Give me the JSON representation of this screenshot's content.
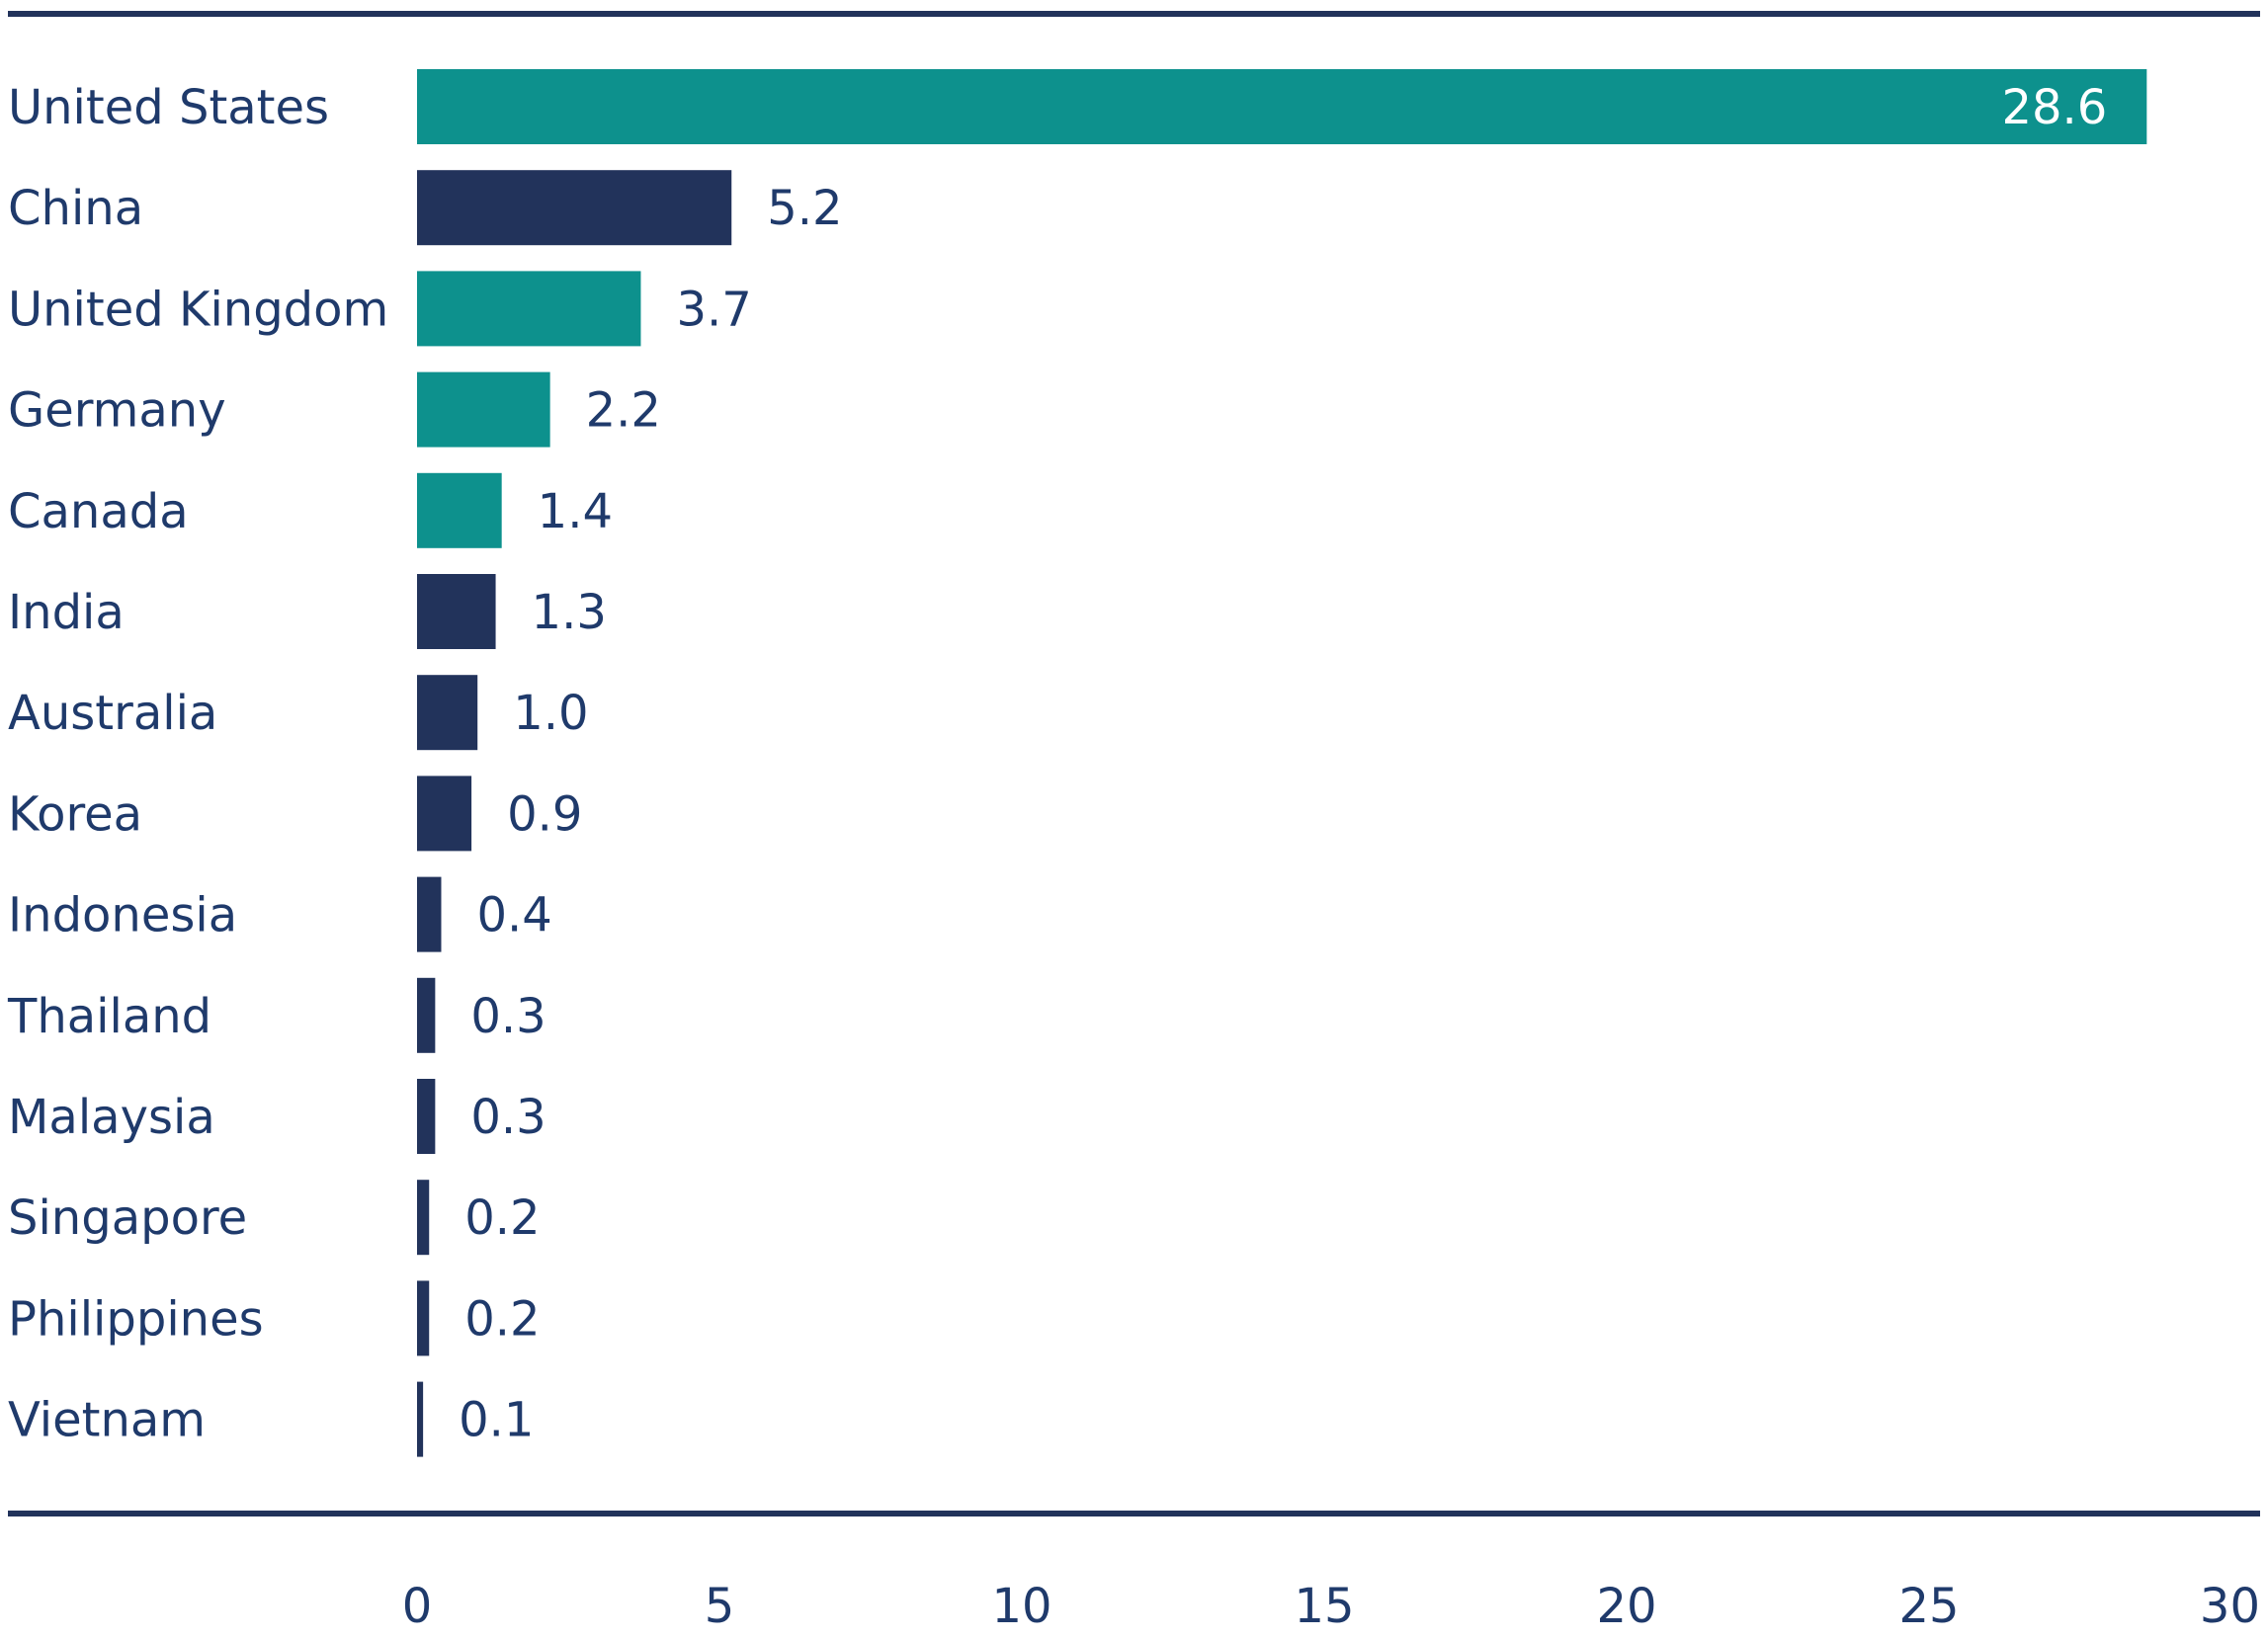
{
  "chart_data": {
    "type": "bar",
    "orientation": "horizontal",
    "categories": [
      "United States",
      "China",
      "United Kingdom",
      "Germany",
      "Canada",
      "India",
      "Australia",
      "Korea",
      "Indonesia",
      "Thailand",
      "Malaysia",
      "Singapore",
      "Philippines",
      "Vietnam"
    ],
    "values": [
      28.6,
      5.2,
      3.7,
      2.2,
      1.4,
      1.3,
      1.0,
      0.9,
      0.4,
      0.3,
      0.3,
      0.2,
      0.2,
      0.1
    ],
    "value_labels": [
      "28.6",
      "5.2",
      "3.7",
      "2.2",
      "1.4",
      "1.3",
      "1.0",
      "0.9",
      "0.4",
      "0.3",
      "0.3",
      "0.2",
      "0.2",
      "0.1"
    ],
    "bar_colors": [
      "#0d918d",
      "#22335b",
      "#0d918d",
      "#0d918d",
      "#0d918d",
      "#22335b",
      "#22335b",
      "#22335b",
      "#22335b",
      "#22335b",
      "#22335b",
      "#22335b",
      "#22335b",
      "#22335b"
    ],
    "xlim": [
      0,
      30
    ],
    "xticks": [
      0,
      5,
      10,
      15,
      20,
      25,
      30
    ],
    "title": "",
    "xlabel": "",
    "ylabel": "",
    "grid": false,
    "axis_line_color": "#22335b"
  }
}
